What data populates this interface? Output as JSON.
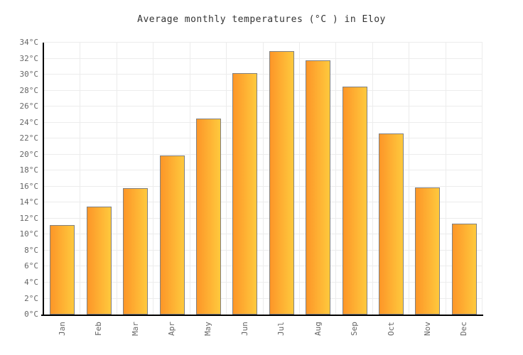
{
  "chart_data": {
    "type": "bar",
    "title": "Average monthly temperatures (°C ) in Eloy",
    "categories": [
      "Jan",
      "Feb",
      "Mar",
      "Apr",
      "May",
      "Jun",
      "Jul",
      "Aug",
      "Sep",
      "Oct",
      "Nov",
      "Dec"
    ],
    "values": [
      11.2,
      13.5,
      15.8,
      19.9,
      24.5,
      30.2,
      32.9,
      31.8,
      28.5,
      22.6,
      15.9,
      11.4
    ],
    "unit": "°C",
    "xlabel": "",
    "ylabel": "",
    "ylim": [
      0,
      34
    ],
    "ytick_step": 2,
    "ytick_labels": [
      "0°C",
      "2°C",
      "4°C",
      "6°C",
      "8°C",
      "10°C",
      "12°C",
      "14°C",
      "16°C",
      "18°C",
      "20°C",
      "22°C",
      "24°C",
      "26°C",
      "28°C",
      "30°C",
      "32°C",
      "34°C"
    ],
    "grid": true,
    "legend_position": "none",
    "colors": {
      "bar_gradient_start": "#fd9628",
      "bar_gradient_end": "#fec93d",
      "bar_border": "#808080",
      "gridline": "#ececec",
      "axis": "#000000",
      "tick_label": "#666666",
      "title": "#333333",
      "background": "#ffffff"
    }
  }
}
